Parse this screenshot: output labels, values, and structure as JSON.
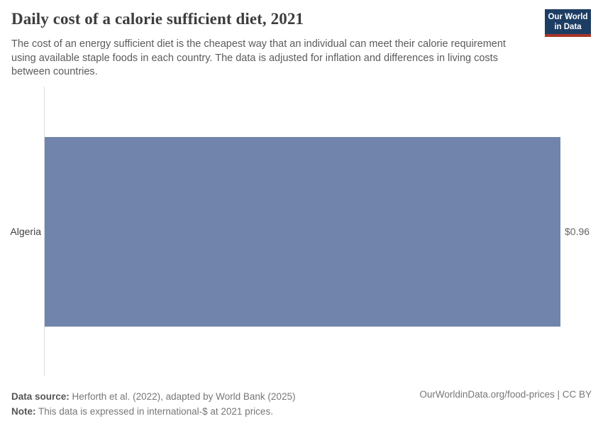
{
  "header": {
    "title": "Daily cost of a calorie sufficient diet, 2021",
    "subtitle_lines": [
      "The cost of an energy sufficient diet is the cheapest way that an individual can meet their calorie requirement",
      "using available staple foods in each country. The data is adjusted for inflation and differences in living costs",
      "between countries."
    ],
    "logo": {
      "line1": "Our World",
      "line2": "in Data"
    }
  },
  "chart_data": {
    "type": "bar",
    "orientation": "horizontal",
    "title": "Daily cost of a calorie sufficient diet, 2021",
    "categories": [
      "Algeria"
    ],
    "values": [
      0.96
    ],
    "value_labels": [
      "$0.96"
    ],
    "xlabel": "",
    "ylabel": "",
    "xlim": [
      0,
      0.96
    ],
    "grid": false,
    "legend": false,
    "bar_color": "#7185ac",
    "axis_line_color": "#dadada"
  },
  "footer": {
    "data_source_label": "Data source:",
    "data_source_text": " Herforth et al. (2022), adapted by World Bank (2025)",
    "note_label": "Note:",
    "note_text": " This data is expressed in international-$ at 2021 prices.",
    "attribution": "OurWorldinData.org/food-prices | CC BY"
  },
  "colors": {
    "logo_bg": "#1d3d63",
    "logo_underline": "#a8352b",
    "title_text": "#3d3d3d",
    "subtitle_text": "#5b5b5b",
    "value_text": "#666666"
  }
}
